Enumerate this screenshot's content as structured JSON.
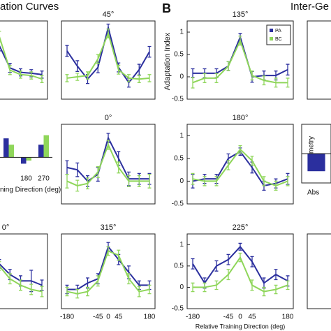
{
  "figure": {
    "title_fragment": "ation Curves",
    "panel_label": "B",
    "right_title_fragment": "Inter-Ge",
    "y_axis_label": "Adaptation Index",
    "x_axis_label": "Relative Training Direction (deg)",
    "left_x_label_fragment": "ning Direction (deg)",
    "asym_label": "Asymmetry",
    "asym_x_fragment": "Abs"
  },
  "chart_data": [
    {
      "type": "line",
      "ylim": [
        -0.5,
        1.25
      ],
      "series": [
        {
          "name": "PA",
          "color": "#2b2f9e",
          "values": [
            0.1,
            0.05,
            0.1,
            0.3,
            0.7,
            0.2,
            0.1,
            0.08,
            0.05
          ],
          "errors": [
            0.1,
            0.1,
            0.1,
            0.1,
            0.12,
            0.1,
            0.08,
            0.08,
            0.08
          ]
        },
        {
          "name": "BC",
          "color": "#8fd65a",
          "values": [
            0,
            0,
            0.05,
            0.4,
            0.9,
            0.15,
            0.05,
            0.03,
            -0.05
          ],
          "errors": [
            0.1,
            0.1,
            0.1,
            0.1,
            0.12,
            0.1,
            0.08,
            0.08,
            0.08
          ]
        }
      ]
    },
    {
      "type": "line",
      "title": "45°",
      "ylim": [
        -0.5,
        1.25
      ],
      "series": [
        {
          "name": "PA",
          "color": "#2b2f9e",
          "values": [
            0.58,
            0.24,
            -0.05,
            0.21,
            1.1,
            0.21,
            -0.13,
            0.16,
            0.56
          ],
          "errors": [
            0.12,
            0.12,
            0.1,
            0.12,
            0.08,
            0.1,
            0.1,
            0.12,
            0.12
          ]
        },
        {
          "name": "BC",
          "color": "#8fd65a",
          "values": [
            -0.03,
            0,
            0.03,
            0.4,
            0.97,
            0.16,
            -0.03,
            -0.05,
            -0.03
          ],
          "errors": [
            0.08,
            0.08,
            0.08,
            0.1,
            0.1,
            0.1,
            0.08,
            0.08,
            0.08
          ]
        }
      ]
    },
    {
      "type": "line",
      "title": "135°",
      "ylim": [
        -0.5,
        1.25
      ],
      "yticks": [
        -0.5,
        0,
        0.5,
        1
      ],
      "legend": "upper right",
      "series": [
        {
          "name": "PA",
          "color": "#2b2f9e",
          "values": [
            0.08,
            0.08,
            0.08,
            0.24,
            0.89,
            0,
            0.03,
            0.03,
            0.16
          ],
          "errors": [
            0.1,
            0.1,
            0.1,
            0.1,
            0.08,
            0.12,
            0.1,
            0.1,
            0.12
          ]
        },
        {
          "name": "BC",
          "color": "#8fd65a",
          "values": [
            -0.13,
            -0.03,
            -0.03,
            0.24,
            0.81,
            0.03,
            -0.08,
            -0.13,
            -0.13
          ],
          "errors": [
            0.12,
            0.1,
            0.1,
            0.1,
            0.1,
            0.1,
            0.1,
            0.1,
            0.1
          ]
        }
      ]
    },
    {
      "type": "line",
      "title": "0°",
      "ylim": [
        -0.5,
        1.25
      ],
      "series": [
        {
          "name": "PA",
          "color": "#2b2f9e",
          "values": [
            0.3,
            0.25,
            0,
            0.15,
            0.95,
            0.5,
            0.05,
            0.05,
            0.05
          ],
          "errors": [
            0.15,
            0.15,
            0.12,
            0.15,
            0.1,
            0.15,
            0.15,
            0.12,
            0.12
          ]
        },
        {
          "name": "BC",
          "color": "#8fd65a",
          "values": [
            0,
            -0.1,
            -0.05,
            0.2,
            0.8,
            0.3,
            0,
            0,
            0
          ],
          "errors": [
            0.15,
            0.12,
            0.12,
            0.12,
            0.1,
            0.12,
            0.12,
            0.12,
            0.15
          ]
        }
      ]
    },
    {
      "type": "line",
      "title": "180°",
      "ylim": [
        -0.5,
        1.25
      ],
      "yticks": [
        -0.5,
        0,
        0.5,
        1
      ],
      "series": [
        {
          "name": "PA",
          "color": "#2b2f9e",
          "values": [
            0,
            0.05,
            0.05,
            0.5,
            0.65,
            0.3,
            -0.1,
            -0.05,
            0.05
          ],
          "errors": [
            0.15,
            0.1,
            0.1,
            0.1,
            0.08,
            0.12,
            0.1,
            0.1,
            0.12
          ]
        },
        {
          "name": "BC",
          "color": "#8fd65a",
          "values": [
            0.05,
            0,
            0,
            0.35,
            0.7,
            0.45,
            0,
            -0.1,
            0
          ],
          "errors": [
            0.12,
            0.1,
            0.1,
            0.1,
            0.08,
            0.1,
            0.1,
            0.1,
            0.1
          ]
        }
      ]
    },
    {
      "type": "line",
      "title": "0°",
      "ylim": [
        -0.5,
        1.25
      ],
      "series": [
        {
          "name": "PA",
          "color": "#2b2f9e",
          "values": [
            0.9,
            0.85,
            0.8,
            0.7,
            0.55,
            0.3,
            0.15,
            0.15,
            0.05
          ],
          "errors": [
            0.12,
            0.12,
            0.12,
            0.12,
            0.1,
            0.12,
            0.12,
            0.25,
            0.12
          ]
        },
        {
          "name": "BC",
          "color": "#8fd65a",
          "values": [
            0.8,
            0.75,
            0.7,
            0.6,
            0.5,
            0.2,
            0.05,
            -0.05,
            -0.1
          ],
          "errors": [
            0.12,
            0.12,
            0.12,
            0.12,
            0.1,
            0.12,
            0.12,
            0.12,
            0.12
          ]
        }
      ]
    },
    {
      "type": "line",
      "title": "315°",
      "ylim": [
        -0.5,
        1.25
      ],
      "categories": [
        "-180",
        null,
        null,
        "-45",
        "0",
        "45",
        null,
        null,
        "180"
      ],
      "series": [
        {
          "name": "PA",
          "color": "#2b2f9e",
          "values": [
            -0.05,
            -0.05,
            0.1,
            0.2,
            0.95,
            0.65,
            0.35,
            0.05,
            0.05
          ],
          "errors": [
            0.1,
            0.1,
            0.12,
            0.12,
            0.1,
            0.12,
            0.15,
            0.1,
            0.1
          ]
        },
        {
          "name": "BC",
          "color": "#8fd65a",
          "values": [
            -0.1,
            -0.15,
            -0.1,
            0.15,
            0.85,
            0.75,
            0.2,
            -0.1,
            -0.05
          ],
          "errors": [
            0.1,
            0.1,
            0.1,
            0.12,
            0.1,
            0.12,
            0.12,
            0.12,
            0.1
          ]
        }
      ]
    },
    {
      "type": "line",
      "title": "225°",
      "ylim": [
        -0.5,
        1.25
      ],
      "yticks": [
        -0.5,
        0,
        0.5,
        1
      ],
      "categories": [
        "-180",
        null,
        null,
        "-45",
        "0",
        "45",
        null,
        null,
        "180"
      ],
      "series": [
        {
          "name": "PA",
          "color": "#2b2f9e",
          "values": [
            0.55,
            0.1,
            0.5,
            0.65,
            0.95,
            0.6,
            0.1,
            0.3,
            0.15
          ],
          "errors": [
            0.12,
            0.12,
            0.12,
            0.12,
            0.08,
            0.12,
            0.12,
            0.12,
            0.12
          ]
        },
        {
          "name": "BC",
          "color": "#8fd65a",
          "values": [
            0,
            0,
            0.05,
            0.3,
            0.7,
            0.05,
            -0.1,
            -0.05,
            0.05
          ],
          "errors": [
            0.1,
            0.1,
            0.1,
            0.12,
            0.1,
            0.12,
            0.1,
            0.1,
            0.1
          ]
        }
      ]
    },
    {
      "type": "bar",
      "ylim": [
        -0.5,
        1
      ],
      "categories": [
        null,
        "180",
        "270"
      ],
      "series": [
        {
          "name": "PA",
          "color": "#2b2f9e",
          "values": [
            0.6,
            -0.2,
            0.4
          ]
        },
        {
          "name": "BC",
          "color": "#8fd65a",
          "values": [
            0.4,
            -0.1,
            0.7
          ]
        }
      ]
    },
    {
      "type": "bar",
      "ylim": [
        -1,
        1
      ],
      "categories": [
        null
      ],
      "series": [
        {
          "name": "PA",
          "color": "#2b2f9e",
          "values": [
            -0.6
          ]
        }
      ]
    }
  ]
}
